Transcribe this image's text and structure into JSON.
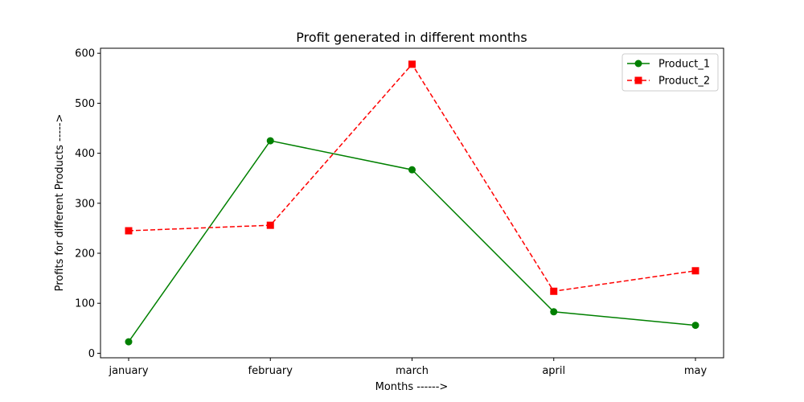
{
  "chart_data": {
    "type": "line",
    "title": "Profit generated in different months",
    "xlabel": "Months ------>",
    "ylabel": "Profits for different Products ----->",
    "categories": [
      "january",
      "february",
      "march",
      "april",
      "may"
    ],
    "ylim": [
      -9,
      610
    ],
    "yticks": [
      0,
      100,
      200,
      300,
      400,
      500,
      600
    ],
    "grid": false,
    "legend_position": "top-right",
    "series": [
      {
        "name": "Product_1",
        "values": [
          23,
          425,
          367,
          83,
          56
        ],
        "color": "#008000",
        "line_style": "solid",
        "marker": "circle"
      },
      {
        "name": "Product_2",
        "values": [
          245,
          256,
          578,
          124,
          165
        ],
        "color": "#ff0000",
        "line_style": "dashed",
        "marker": "square"
      }
    ]
  }
}
